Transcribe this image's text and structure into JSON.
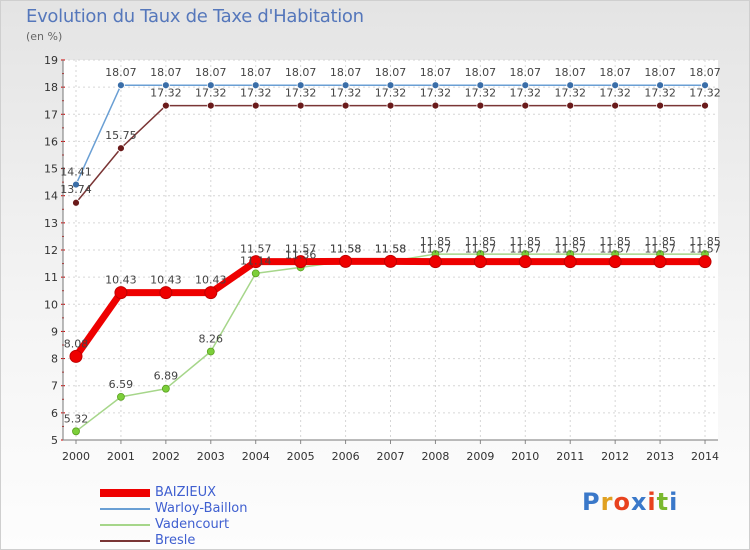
{
  "header": {
    "title": "Evolution du Taux de Taxe d'Habitation",
    "subtitle": "(en %)"
  },
  "logo": {
    "text": "Proxiti",
    "letter_colors": [
      "#3a78c9",
      "#e0a020",
      "#e8421e",
      "#3a78c9",
      "#e8421e",
      "#7ab82e",
      "#3a78c9"
    ]
  },
  "chart_data": {
    "type": "line",
    "title": "Evolution du Taux de Taxe d'Habitation",
    "subtitle": "(en %)",
    "x": [
      "2000",
      "2001",
      "2002",
      "2003",
      "2004",
      "2005",
      "2006",
      "2007",
      "2008",
      "2009",
      "2010",
      "2011",
      "2012",
      "2013",
      "2014"
    ],
    "ylim": [
      5,
      19
    ],
    "yticks": [
      "5",
      "6",
      "7",
      "8",
      "9",
      "10",
      "11",
      "12",
      "13",
      "14",
      "15",
      "16",
      "17",
      "18",
      "19"
    ],
    "grid": true,
    "legend_position": "bottom-left",
    "series": [
      {
        "name": "BAIZIEUX",
        "color": "#ee0000",
        "values": [
          8.08,
          10.43,
          10.43,
          10.43,
          11.57,
          11.57,
          11.58,
          11.58,
          11.57,
          11.57,
          11.57,
          11.57,
          11.57,
          11.57,
          11.57
        ],
        "labels": [
          "8.08",
          "10.43",
          "10.43",
          "10.43",
          "11.57",
          "11.57",
          "11.58",
          "11.58",
          "11.57",
          "11.57",
          "11.57",
          "11.57",
          "11.57",
          "11.57",
          "11.57"
        ]
      },
      {
        "name": "Warloy-Baillon",
        "color": "#6a9fd4",
        "values": [
          14.41,
          18.07,
          18.07,
          18.07,
          18.07,
          18.07,
          18.07,
          18.07,
          18.07,
          18.07,
          18.07,
          18.07,
          18.07,
          18.07,
          18.07
        ],
        "labels": [
          "14.41",
          "18.07",
          "18.07",
          "18.07",
          "18.07",
          "18.07",
          "18.07",
          "18.07",
          "18.07",
          "18.07",
          "18.07",
          "18.07",
          "18.07",
          "18.07",
          "18.07"
        ]
      },
      {
        "name": "Vadencourt",
        "color": "#a6d68a",
        "values": [
          5.32,
          6.59,
          6.89,
          8.26,
          11.14,
          11.36,
          11.58,
          11.58,
          11.85,
          11.85,
          11.85,
          11.85,
          11.85,
          11.85,
          11.85
        ],
        "labels": [
          "5.32",
          "6.59",
          "6.89",
          "8.26",
          "11.14",
          "11.36",
          "11.58",
          "11.58",
          "11.85",
          "11.85",
          "11.85",
          "11.85",
          "11.85",
          "11.85",
          "11.85"
        ]
      },
      {
        "name": "Bresle",
        "color": "#7a3535",
        "values": [
          13.74,
          15.75,
          17.32,
          17.32,
          17.32,
          17.32,
          17.32,
          17.32,
          17.32,
          17.32,
          17.32,
          17.32,
          17.32,
          17.32,
          17.32
        ],
        "labels": [
          "13.74",
          "15.75",
          "17.32",
          "17.32",
          "17.32",
          "17.32",
          "17.32",
          "17.32",
          "17.32",
          "17.32",
          "17.32",
          "17.32",
          "17.32",
          "17.32",
          "17.32"
        ]
      }
    ]
  }
}
